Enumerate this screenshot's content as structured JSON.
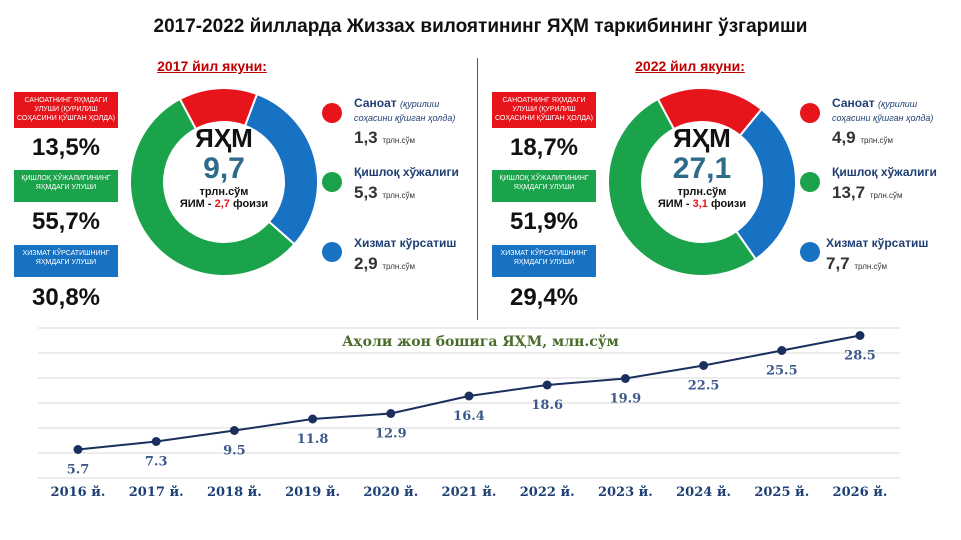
{
  "title": "2017-2022 йилларда Жиззах вилоятининг ЯҲМ таркибининг ўзгариши",
  "panels": [
    {
      "heading": "2017 йил якуни:",
      "center_label": "ЯҲМ",
      "total": "9,7",
      "unit": "трлн.сўм",
      "gdp_prefix": "ЯИМ - ",
      "gdp_share": "2,7",
      "gdp_suffix": " фоизи",
      "badges": [
        "САНОАТНИНГ ЯҲМДАГИ УЛУШИ (қурилиш соҳасини қўшган ҳолда)",
        "ҚИШЛОҚ ХЎЖАЛИГИНИНГ ЯҲМДАГИ УЛУШИ",
        "ХИЗМАТ КЎРСАТИШНИНГ ЯҲМДАГИ УЛУШИ"
      ],
      "percents": [
        "13,5%",
        "55,7%",
        "30,8%"
      ],
      "legend": [
        {
          "name": "Саноат",
          "note": "(қурилиш соҳасини қўшган ҳолда)",
          "value": "1,3",
          "unit": "трлн.сўм"
        },
        {
          "name": "Қишлоқ хўжалиги",
          "note": "",
          "value": "5,3",
          "unit": "трлн.сўм"
        },
        {
          "name": "Хизмат кўрсатиш",
          "note": "",
          "value": "2,9",
          "unit": "трлн.сўм"
        }
      ]
    },
    {
      "heading": "2022 йил якуни:",
      "center_label": "ЯҲМ",
      "total": "27,1",
      "unit": "трлн.сўм",
      "gdp_prefix": "ЯИМ - ",
      "gdp_share": "3,1",
      "gdp_suffix": " фоизи",
      "badges": [
        "САНОАТНИНГ ЯҲМДАГИ УЛУШИ (қурилиш соҳасини қўшган ҳолда)",
        "ҚИШЛОҚ ХЎЖАЛИГИНИНГ ЯҲМДАГИ УЛУШИ",
        "ХИЗМАТ КЎРСАТИШНИНГ ЯҲМДАГИ УЛУШИ"
      ],
      "percents": [
        "18,7%",
        "51,9%",
        "29,4%"
      ],
      "legend": [
        {
          "name": "Саноат",
          "note": "(қурилиш соҳасини қўшган ҳолда)",
          "value": "4,9",
          "unit": "трлн.сўм"
        },
        {
          "name": "Қишлоқ хўжалиги",
          "note": "",
          "value": "13,7",
          "unit": "трлн.сўм"
        },
        {
          "name": "Хизмат кўрсатиш",
          "note": "",
          "value": "7,7",
          "unit": "трлн.сўм"
        }
      ]
    }
  ],
  "colors": {
    "industry": "#e8141c",
    "agriculture": "#1aa34a",
    "services": "#1772c4",
    "line": "#1b2f5e"
  },
  "chart_data": [
    {
      "type": "pie",
      "variant": "donut",
      "title": "2017 йил якуни:",
      "categories": [
        "Саноат",
        "Қишлоқ хўжалиги",
        "Хизмат кўрсатиш"
      ],
      "values": [
        13.5,
        55.7,
        30.8
      ]
    },
    {
      "type": "pie",
      "variant": "donut",
      "title": "2022 йил якуни:",
      "categories": [
        "Саноат",
        "Қишлоқ хўжалиги",
        "Хизмат кўрсатиш"
      ],
      "values": [
        18.7,
        51.9,
        29.4
      ]
    },
    {
      "type": "line",
      "title": "Аҳоли жон бошига ЯҲМ, млн.сўм",
      "categories": [
        "2016 й.",
        "2017 й.",
        "2018 й.",
        "2019 й.",
        "2020 й.",
        "2021 й.",
        "2022 й.",
        "2023 й.",
        "2024 й.",
        "2025 й.",
        "2026 й."
      ],
      "series": [
        {
          "values": [
            5.7,
            7.3,
            9.5,
            11.8,
            12.9,
            16.4,
            18.6,
            19.9,
            22.5,
            25.5,
            28.5
          ]
        }
      ],
      "data_labels": [
        "5.7",
        "7.3",
        "9.5",
        "11.8",
        "12.9",
        "16.4",
        "18.6",
        "19.9",
        "22.5",
        "25.5",
        "28.5"
      ],
      "ylim": [
        0,
        30
      ],
      "grid": true
    }
  ]
}
